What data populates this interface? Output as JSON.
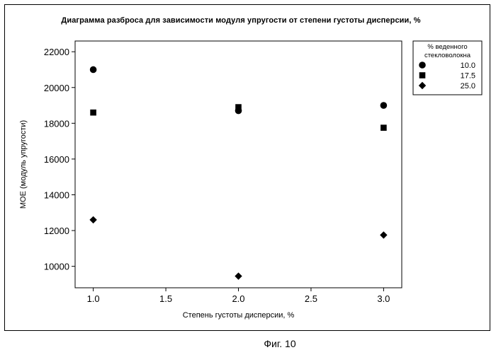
{
  "caption": "Фиг. 10",
  "chart_data": {
    "type": "scatter",
    "title": "Диаграмма разброса для зависимости модуля упругости от степени густоты дисперсии, %",
    "xlabel": "Степень густоты дисперсии, %",
    "ylabel": "MOE (модуль упругости)",
    "xlim": [
      0.875,
      3.125
    ],
    "ylim": [
      8800,
      22600
    ],
    "x_ticks": [
      1.0,
      1.5,
      2.0,
      2.5,
      3.0
    ],
    "x_tick_labels": [
      "1.0",
      "1.5",
      "2.0",
      "2.5",
      "3.0"
    ],
    "y_ticks": [
      10000,
      12000,
      14000,
      16000,
      18000,
      20000,
      22000
    ],
    "y_tick_labels": [
      "10000",
      "12000",
      "14000",
      "16000",
      "18000",
      "20000",
      "22000"
    ],
    "grid": false,
    "legend": {
      "title_line1": "% веденного",
      "title_line2": "стекловолокна",
      "placement": "right"
    },
    "series": [
      {
        "name": "10.0",
        "marker": "circle",
        "points": [
          {
            "x": 1.0,
            "y": 21000
          },
          {
            "x": 2.0,
            "y": 18700
          },
          {
            "x": 3.0,
            "y": 19000
          }
        ]
      },
      {
        "name": "17.5",
        "marker": "square",
        "points": [
          {
            "x": 1.0,
            "y": 18600
          },
          {
            "x": 2.0,
            "y": 18900
          },
          {
            "x": 3.0,
            "y": 17750
          }
        ]
      },
      {
        "name": "25.0",
        "marker": "diamond",
        "points": [
          {
            "x": 1.0,
            "y": 12600
          },
          {
            "x": 2.0,
            "y": 9450
          },
          {
            "x": 3.0,
            "y": 11750
          }
        ]
      }
    ]
  }
}
